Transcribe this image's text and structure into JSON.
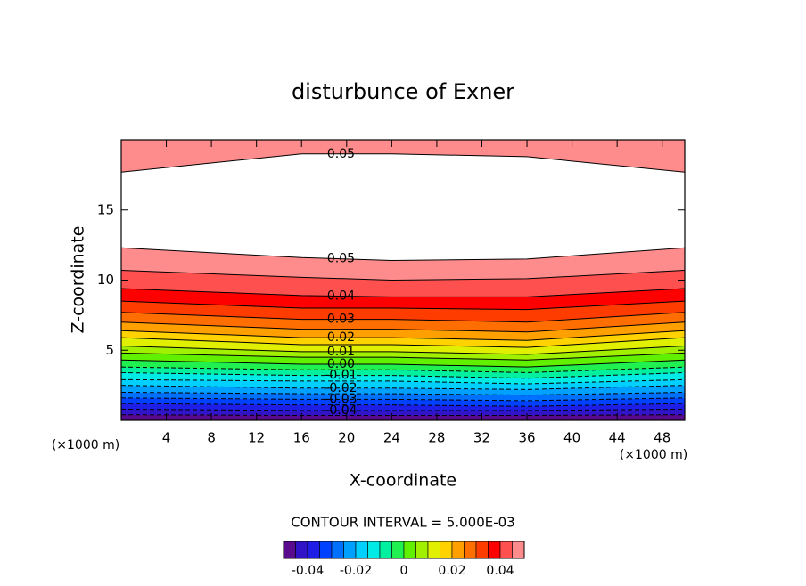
{
  "chart_data": {
    "type": "contour",
    "title": "disturbunce of Exner",
    "xlabel": "X-coordinate",
    "ylabel": "Z-coordinate",
    "x_unit": "(×1000 m)",
    "y_unit": "(×1000 m)",
    "footer": "CONTOUR INTERVAL = 5.000E-03",
    "xlim": [
      0,
      50
    ],
    "ylim": [
      0,
      20
    ],
    "xticks": [
      4,
      8,
      12,
      16,
      20,
      24,
      28,
      32,
      36,
      40,
      44,
      48
    ],
    "yticks": [
      5,
      10,
      15
    ],
    "negative_dashed": true,
    "x_points": [
      0,
      16,
      24,
      36,
      50
    ],
    "contours": [
      {
        "level": -0.045,
        "z": [
          0.4,
          0.35,
          0.35,
          0.35,
          0.4
        ]
      },
      {
        "level": -0.04,
        "z": [
          0.8,
          0.7,
          0.7,
          0.7,
          0.8
        ],
        "label": "-0.04"
      },
      {
        "level": -0.035,
        "z": [
          1.2,
          1.1,
          1.1,
          1.0,
          1.2
        ]
      },
      {
        "level": -0.03,
        "z": [
          1.6,
          1.5,
          1.5,
          1.4,
          1.6
        ],
        "label": "-0.03"
      },
      {
        "level": -0.025,
        "z": [
          2.0,
          1.9,
          1.9,
          1.8,
          2.0
        ]
      },
      {
        "level": -0.02,
        "z": [
          2.5,
          2.3,
          2.3,
          2.2,
          2.5
        ],
        "label": "-0.02"
      },
      {
        "level": -0.015,
        "z": [
          2.9,
          2.8,
          2.8,
          2.6,
          2.9
        ]
      },
      {
        "level": -0.01,
        "z": [
          3.4,
          3.2,
          3.2,
          3.0,
          3.4
        ],
        "label": "-0.01"
      },
      {
        "level": -0.005,
        "z": [
          3.8,
          3.6,
          3.6,
          3.4,
          3.8
        ]
      },
      {
        "level": 0,
        "z": [
          4.3,
          4.0,
          4.0,
          3.8,
          4.3
        ],
        "label": "0.00"
      },
      {
        "level": 0.005,
        "z": [
          4.8,
          4.5,
          4.5,
          4.3,
          4.8
        ]
      },
      {
        "level": 0.01,
        "z": [
          5.3,
          4.9,
          4.9,
          4.7,
          5.3
        ],
        "label": "0.01"
      },
      {
        "level": 0.015,
        "z": [
          5.9,
          5.4,
          5.4,
          5.2,
          5.9
        ]
      },
      {
        "level": 0.02,
        "z": [
          6.4,
          5.9,
          5.9,
          5.7,
          6.4
        ],
        "label": "0.02"
      },
      {
        "level": 0.025,
        "z": [
          7.0,
          6.5,
          6.5,
          6.3,
          7.0
        ]
      },
      {
        "level": 0.03,
        "z": [
          7.7,
          7.2,
          7.2,
          7.0,
          7.7
        ],
        "label": "0.03"
      },
      {
        "level": 0.035,
        "z": [
          8.5,
          8.0,
          8.0,
          7.9,
          8.5
        ]
      },
      {
        "level": 0.04,
        "z": [
          9.4,
          8.9,
          8.8,
          8.8,
          9.4
        ],
        "label": "0.04"
      },
      {
        "level": 0.045,
        "z": [
          10.7,
          10.2,
          10.0,
          10.1,
          10.7
        ]
      },
      {
        "level": 0.05,
        "z": [
          12.3,
          11.6,
          11.4,
          11.5,
          12.3
        ],
        "label": "0.05"
      },
      {
        "level": 0.05,
        "z": [
          17.7,
          19.0,
          19.0,
          18.8,
          17.7
        ],
        "label": "0.05"
      }
    ],
    "clim": [
      -0.05,
      0.05
    ],
    "colorbar_ticks": [
      -0.04,
      -0.02,
      0,
      0.02,
      0.04
    ],
    "colormap": [
      "#5a0a8c",
      "#3214c8",
      "#1e1ee6",
      "#0040ff",
      "#0070ff",
      "#00a0ff",
      "#00d0ff",
      "#00ebe6",
      "#00f0a0",
      "#20f050",
      "#60f000",
      "#a0f000",
      "#e0f000",
      "#ffd200",
      "#ffa000",
      "#ff6e00",
      "#ff3c00",
      "#ff0000",
      "#ff5050",
      "#ff8c8c"
    ]
  }
}
